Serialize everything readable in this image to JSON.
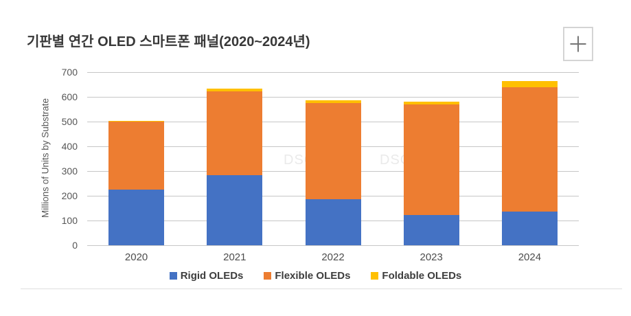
{
  "header": {
    "title": "기판별 연간 OLED 스마트폰 패널(2020~2024년)",
    "zoom_icon": "plus"
  },
  "watermark": {
    "text": "DSCC"
  },
  "chart_data": {
    "type": "bar",
    "stacked": true,
    "title": "기판별 연간 OLED 스마트폰 패널(2020~2024년)",
    "xlabel": "",
    "ylabel": "Millions of Units by Substrate",
    "ylim": [
      0,
      700
    ],
    "ytick_step": 100,
    "yticks": [
      0,
      100,
      200,
      300,
      400,
      500,
      600,
      700
    ],
    "grid": true,
    "legend_position": "bottom",
    "categories": [
      "2020",
      "2021",
      "2022",
      "2023",
      "2024"
    ],
    "series": [
      {
        "name": "Rigid OLEDs",
        "color": "#4472C4",
        "values": [
          225,
          283,
          185,
          122,
          135
        ]
      },
      {
        "name": "Flexible OLEDs",
        "color": "#ED7D31",
        "values": [
          276,
          340,
          390,
          448,
          505
        ]
      },
      {
        "name": "Foldable OLEDs",
        "color": "#FFC000",
        "values": [
          2,
          10,
          10,
          12,
          25
        ]
      }
    ]
  }
}
